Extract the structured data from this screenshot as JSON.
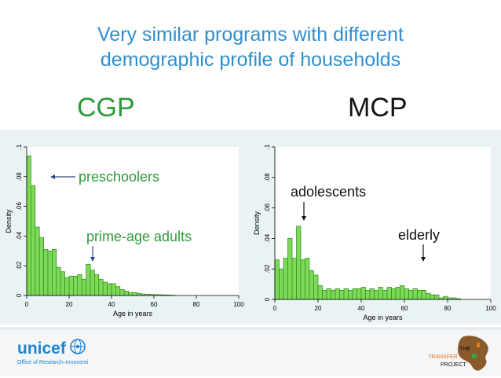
{
  "title_lines": [
    "Very similar programs with different",
    "demographic profile of households"
  ],
  "labels": {
    "cgp": "CGP",
    "mcp": "MCP"
  },
  "annotations": {
    "cgp": [
      {
        "text": "preschoolers"
      },
      {
        "text": "prime-age adults"
      }
    ],
    "mcp": [
      {
        "text": "adolescents"
      },
      {
        "text": "elderly"
      }
    ]
  },
  "footer": {
    "logo_text": "unicef",
    "logo_subtext": "Office of Research–Innocenti",
    "transfer_logo": [
      "THE",
      "TRANSFER",
      "PROJECT"
    ]
  },
  "colors": {
    "title": "#2f8fd0",
    "accent_green": "#2e9a3a",
    "bar_fill": "#7ed957",
    "bar_stroke": "#2d8a1f",
    "unicef_blue": "#1f84d0"
  },
  "chart_data": [
    {
      "type": "bar",
      "name": "CGP",
      "xlabel": "Age in years",
      "ylabel": "Density",
      "xlim": [
        0,
        100
      ],
      "ylim": [
        0,
        0.1
      ],
      "xticks": [
        "0",
        "20",
        "40",
        "60",
        "80",
        "100"
      ],
      "yticks": [
        "0",
        ".02",
        ".04",
        ".06",
        ".08",
        ".1"
      ],
      "bin_width": 2,
      "bin_start": 0,
      "values": [
        0.094,
        0.074,
        0.046,
        0.039,
        0.031,
        0.03,
        0.031,
        0.019,
        0.016,
        0.012,
        0.013,
        0.013,
        0.014,
        0.011,
        0.021,
        0.017,
        0.014,
        0.011,
        0.009,
        0.008,
        0.008,
        0.006,
        0.004,
        0.003,
        0.002,
        0.002,
        0.0015,
        0.001,
        0.0008,
        0.0007,
        0.0006,
        0.0005,
        0.0004,
        0.0003,
        0.0002
      ]
    },
    {
      "type": "bar",
      "name": "MCP",
      "xlabel": "Age in years",
      "ylabel": "Density",
      "xlim": [
        0,
        100
      ],
      "ylim": [
        0,
        0.1
      ],
      "xticks": [
        "0",
        "20",
        "40",
        "60",
        "80",
        "100"
      ],
      "yticks": [
        "0",
        ".02",
        ".04",
        ".06",
        ".08",
        ".1"
      ],
      "bin_width": 2,
      "bin_start": 0,
      "values": [
        0.026,
        0.02,
        0.027,
        0.04,
        0.027,
        0.048,
        0.026,
        0.027,
        0.019,
        0.016,
        0.009,
        0.006,
        0.007,
        0.006,
        0.007,
        0.006,
        0.007,
        0.006,
        0.007,
        0.007,
        0.008,
        0.006,
        0.007,
        0.006,
        0.008,
        0.006,
        0.008,
        0.007,
        0.008,
        0.009,
        0.007,
        0.006,
        0.007,
        0.006,
        0.006,
        0.004,
        0.003,
        0.003,
        0.001,
        0.002,
        0.001,
        0.001,
        0.0005
      ]
    }
  ]
}
